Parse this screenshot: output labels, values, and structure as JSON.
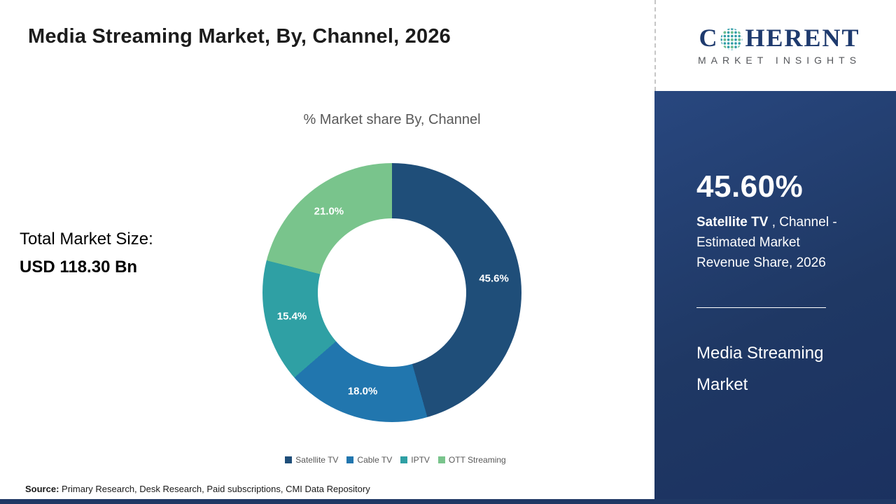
{
  "header": {
    "title": "Media Streaming Market, By, Channel, 2026"
  },
  "logo": {
    "brand_c": "C",
    "brand_rest": "HERENT",
    "tagline": "MARKET INSIGHTS"
  },
  "left_text": {
    "line1": "Total Market Size:",
    "line2": "USD 118.30 Bn"
  },
  "chart_data": {
    "type": "pie",
    "donut": true,
    "title": "% Market share By, Channel",
    "categories": [
      "Satellite TV",
      "Cable TV",
      "IPTV",
      "OTT Streaming"
    ],
    "values": [
      45.6,
      18.0,
      15.4,
      21.0
    ],
    "labels": [
      "45.6%",
      "18.0%",
      "15.4%",
      "21.0%"
    ],
    "colors": [
      "#1f4e79",
      "#2176ae",
      "#2fa0a4",
      "#79c48c"
    ],
    "legend_position": "bottom",
    "start_angle_deg": 0,
    "direction": "clockwise"
  },
  "sidebar": {
    "stat": "45.60%",
    "stat_bold": "Satellite TV",
    "stat_rest": " , Channel - Estimated Market Revenue Share, 2026",
    "market_name": "Media Streaming Market"
  },
  "source": {
    "label": "Source:",
    "text": " Primary Research, Desk Research, Paid subscriptions, CMI Data Repository"
  }
}
